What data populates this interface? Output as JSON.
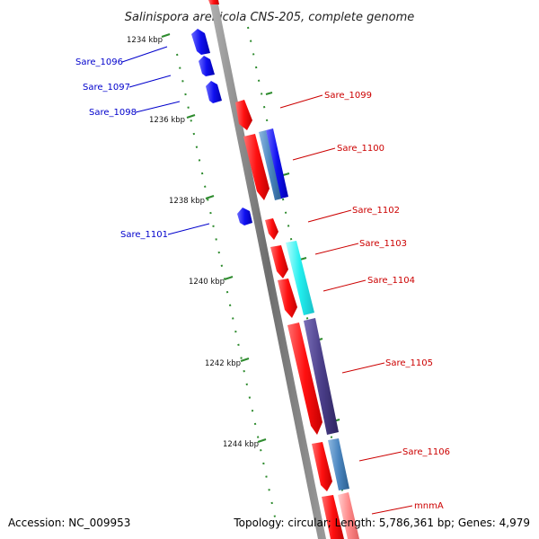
{
  "title": "Salinispora arenicola CNS-205, complete genome",
  "footer": {
    "accession": "Accession: NC_009953",
    "topology": "Topology: circular; Length: 5,786,361 bp; Genes: 4,979"
  },
  "ticks": [
    "1234 kbp",
    "1236 kbp",
    "1238 kbp",
    "1240 kbp",
    "1242 kbp",
    "1244 kbp"
  ],
  "genes": {
    "sare_1096": "Sare_1096",
    "sare_1097": "Sare_1097",
    "sare_1098": "Sare_1098",
    "sare_1099": "Sare_1099",
    "sare_1100": "Sare_1100",
    "sare_1101": "Sare_1101",
    "sare_1102": "Sare_1102",
    "sare_1103": "Sare_1103",
    "sare_1104": "Sare_1104",
    "sare_1105": "Sare_1105",
    "sare_1106": "Sare_1106",
    "mnmA": "mnmA"
  },
  "colors": {
    "reverse_strand": "#0a0ae0",
    "forward_strand": "#ee1111",
    "label_reverse": "#0000cc",
    "label_forward": "#cc0000",
    "backbone": "#808080",
    "tick": "#2e8b2e",
    "cyan": "#22e6e6",
    "steel": "#4a7fb5",
    "indigo": "#4b3f8a"
  }
}
